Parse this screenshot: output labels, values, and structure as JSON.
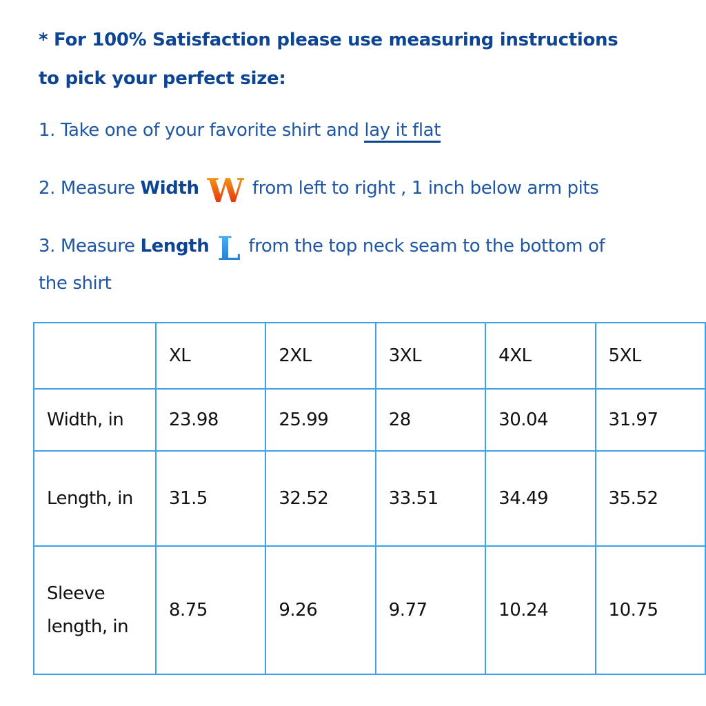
{
  "header": {
    "line1": "* For 100% Satisfaction please use measuring instructions",
    "line2": "to pick your perfect size:"
  },
  "steps": [
    {
      "prefix": "1. Take one of your favorite shirt and ",
      "underlined": "lay it flat"
    },
    {
      "prefix": "2. Measure ",
      "bold": "Width",
      "icon": "W",
      "suffix": " from left to right , 1 inch below arm pits"
    },
    {
      "prefix": "3. Measure ",
      "bold": "Length",
      "icon": "L",
      "suffix": " from the top neck seam to the bottom of",
      "suffix2": "the shirt"
    }
  ],
  "table": {
    "headers": [
      "",
      "XL",
      "2XL",
      "3XL",
      "4XL",
      "5XL"
    ],
    "rows": [
      {
        "label": "Width, in",
        "values": [
          "23.98",
          "25.99",
          "28",
          "30.04",
          "31.97"
        ]
      },
      {
        "label": "Length, in",
        "values": [
          "31.5",
          "32.52",
          "33.51",
          "34.49",
          "35.52"
        ]
      },
      {
        "label": "Sleeve length, in",
        "values": [
          "8.75",
          "9.26",
          "9.77",
          "10.24",
          "10.75"
        ]
      }
    ]
  },
  "colors": {
    "heading": "#0d4593",
    "text": "#1f57a3",
    "table_border": "#3ea2ea"
  }
}
